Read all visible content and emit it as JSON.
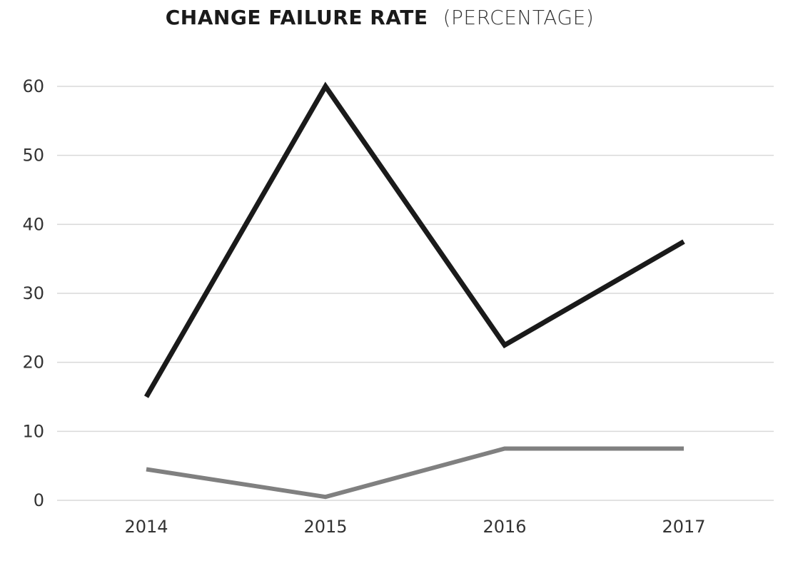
{
  "chart_data": {
    "type": "line",
    "title": "CHANGE FAILURE RATE",
    "subtitle": "(PERCENTAGE)",
    "xlabel": "",
    "ylabel": "",
    "categories": [
      "2014",
      "2015",
      "2016",
      "2017"
    ],
    "yticks": [
      "0",
      "10",
      "20",
      "30",
      "40",
      "50",
      "60"
    ],
    "ylim": [
      0,
      60
    ],
    "grid": true,
    "legend": "none",
    "series": [
      {
        "values": [
          15,
          60,
          22.5,
          37.5
        ],
        "color": "#1a1a1a"
      },
      {
        "values": [
          4.5,
          0.5,
          7.5,
          7.5
        ],
        "color": "#808080"
      }
    ]
  }
}
